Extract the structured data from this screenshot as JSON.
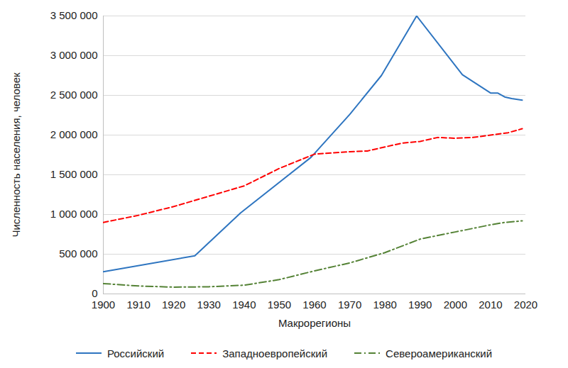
{
  "chart_data": {
    "type": "line",
    "x_label": "Макрорегионы",
    "y_label": "Численность населения, человек",
    "xlim": [
      1900,
      2020
    ],
    "xticks": [
      1900,
      1910,
      1920,
      1930,
      1940,
      1950,
      1960,
      1970,
      1980,
      1990,
      2000,
      2010,
      2020
    ],
    "ylim": [
      0,
      3500000
    ],
    "yticks": [
      0,
      {
        "value": 500000,
        "label": "500 000"
      },
      {
        "value": 1000000,
        "label": "1 000 000"
      },
      {
        "value": 1500000,
        "label": "1 500 000"
      },
      {
        "value": 2000000,
        "label": "2 000 000"
      },
      {
        "value": 2500000,
        "label": "2 500 000"
      },
      {
        "value": 3000000,
        "label": "3 000 000"
      },
      {
        "value": 3500000,
        "label": "3 500 000"
      }
    ],
    "grid": true,
    "legend": "bottom",
    "series": [
      {
        "name": "Российский",
        "color": "#2e75c0",
        "line_style": "solid",
        "x": [
          1900,
          1926,
          1939,
          1959,
          1970,
          1979,
          1989,
          2002,
          2010,
          2012,
          2014,
          2016,
          2019
        ],
        "values": [
          280000,
          480000,
          1020000,
          1720000,
          2260000,
          2750000,
          3500000,
          2760000,
          2530000,
          2530000,
          2480000,
          2460000,
          2440000
        ]
      },
      {
        "name": "Западноевропейский",
        "color": "#ff0000",
        "line_style": "dashed",
        "x": [
          1900,
          1910,
          1920,
          1930,
          1940,
          1950,
          1960,
          1970,
          1975,
          1980,
          1985,
          1990,
          1995,
          2000,
          2005,
          2010,
          2015,
          2019
        ],
        "values": [
          900000,
          990000,
          1100000,
          1230000,
          1360000,
          1580000,
          1760000,
          1790000,
          1800000,
          1850000,
          1900000,
          1920000,
          1970000,
          1960000,
          1970000,
          2000000,
          2030000,
          2080000
        ]
      },
      {
        "name": "Североамериканский",
        "color": "#548235",
        "line_style": "dashdot",
        "x": [
          1900,
          1910,
          1920,
          1930,
          1940,
          1950,
          1960,
          1970,
          1980,
          1990,
          2000,
          2010,
          2014,
          2019
        ],
        "values": [
          130000,
          100000,
          85000,
          90000,
          110000,
          180000,
          290000,
          390000,
          520000,
          690000,
          780000,
          870000,
          900000,
          920000
        ]
      }
    ]
  }
}
